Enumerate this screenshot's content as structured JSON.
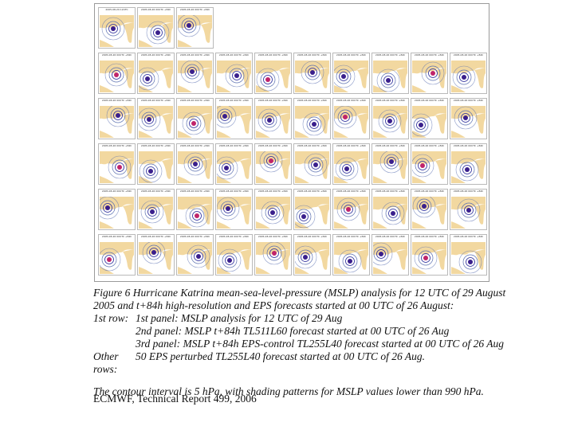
{
  "figure": {
    "panel_header_row1": [
      "2005-08-29 12UTC",
      "2005-08-26 00UTC +84h",
      "2005-08-26 00UTC +84h"
    ],
    "panel_header_member": "2005-08-26 00UTC +84h",
    "row1_panel_count": 3,
    "rows_of_members": 5,
    "panels_per_member_row": 10,
    "map_colors": {
      "land": "#f2d8a0",
      "sea": "#ffffff",
      "isobar_outer": "#5a6fb0",
      "isobar_inner": "#2a2a9a",
      "core": "#3a1f8c",
      "core_alt": "#c0246a"
    }
  },
  "caption": {
    "title": "Figure 6 Hurricane Katrina mean-sea-level-pressure (MSLP) analysis for 12 UTC of 29 August 2005 and t+84h high-resolution and EPS forecasts started at 00 UTC of 26 August:",
    "row1_label": "1st row:",
    "line1": "1st panel: MSLP analysis for 12 UTC of 29 Aug",
    "line2": "2nd panel: MSLP t+84h TL511L60 forecast started at 00 UTC of 26 Aug",
    "line3": "3rd panel: MSLP t+84h EPS-control TL255L40 forecast started at 00 UTC of 26 Aug",
    "other_label": "Other rows:",
    "other_text": "50 EPS perturbed TL255L40 forecast started at 00 UTC of 26 Aug.",
    "contour_note": "The contour interval is 5 hPa, with shading patterns for MSLP values lower than 990 hPa."
  },
  "footer": "ECMWF, Technical Report 499, 2006"
}
